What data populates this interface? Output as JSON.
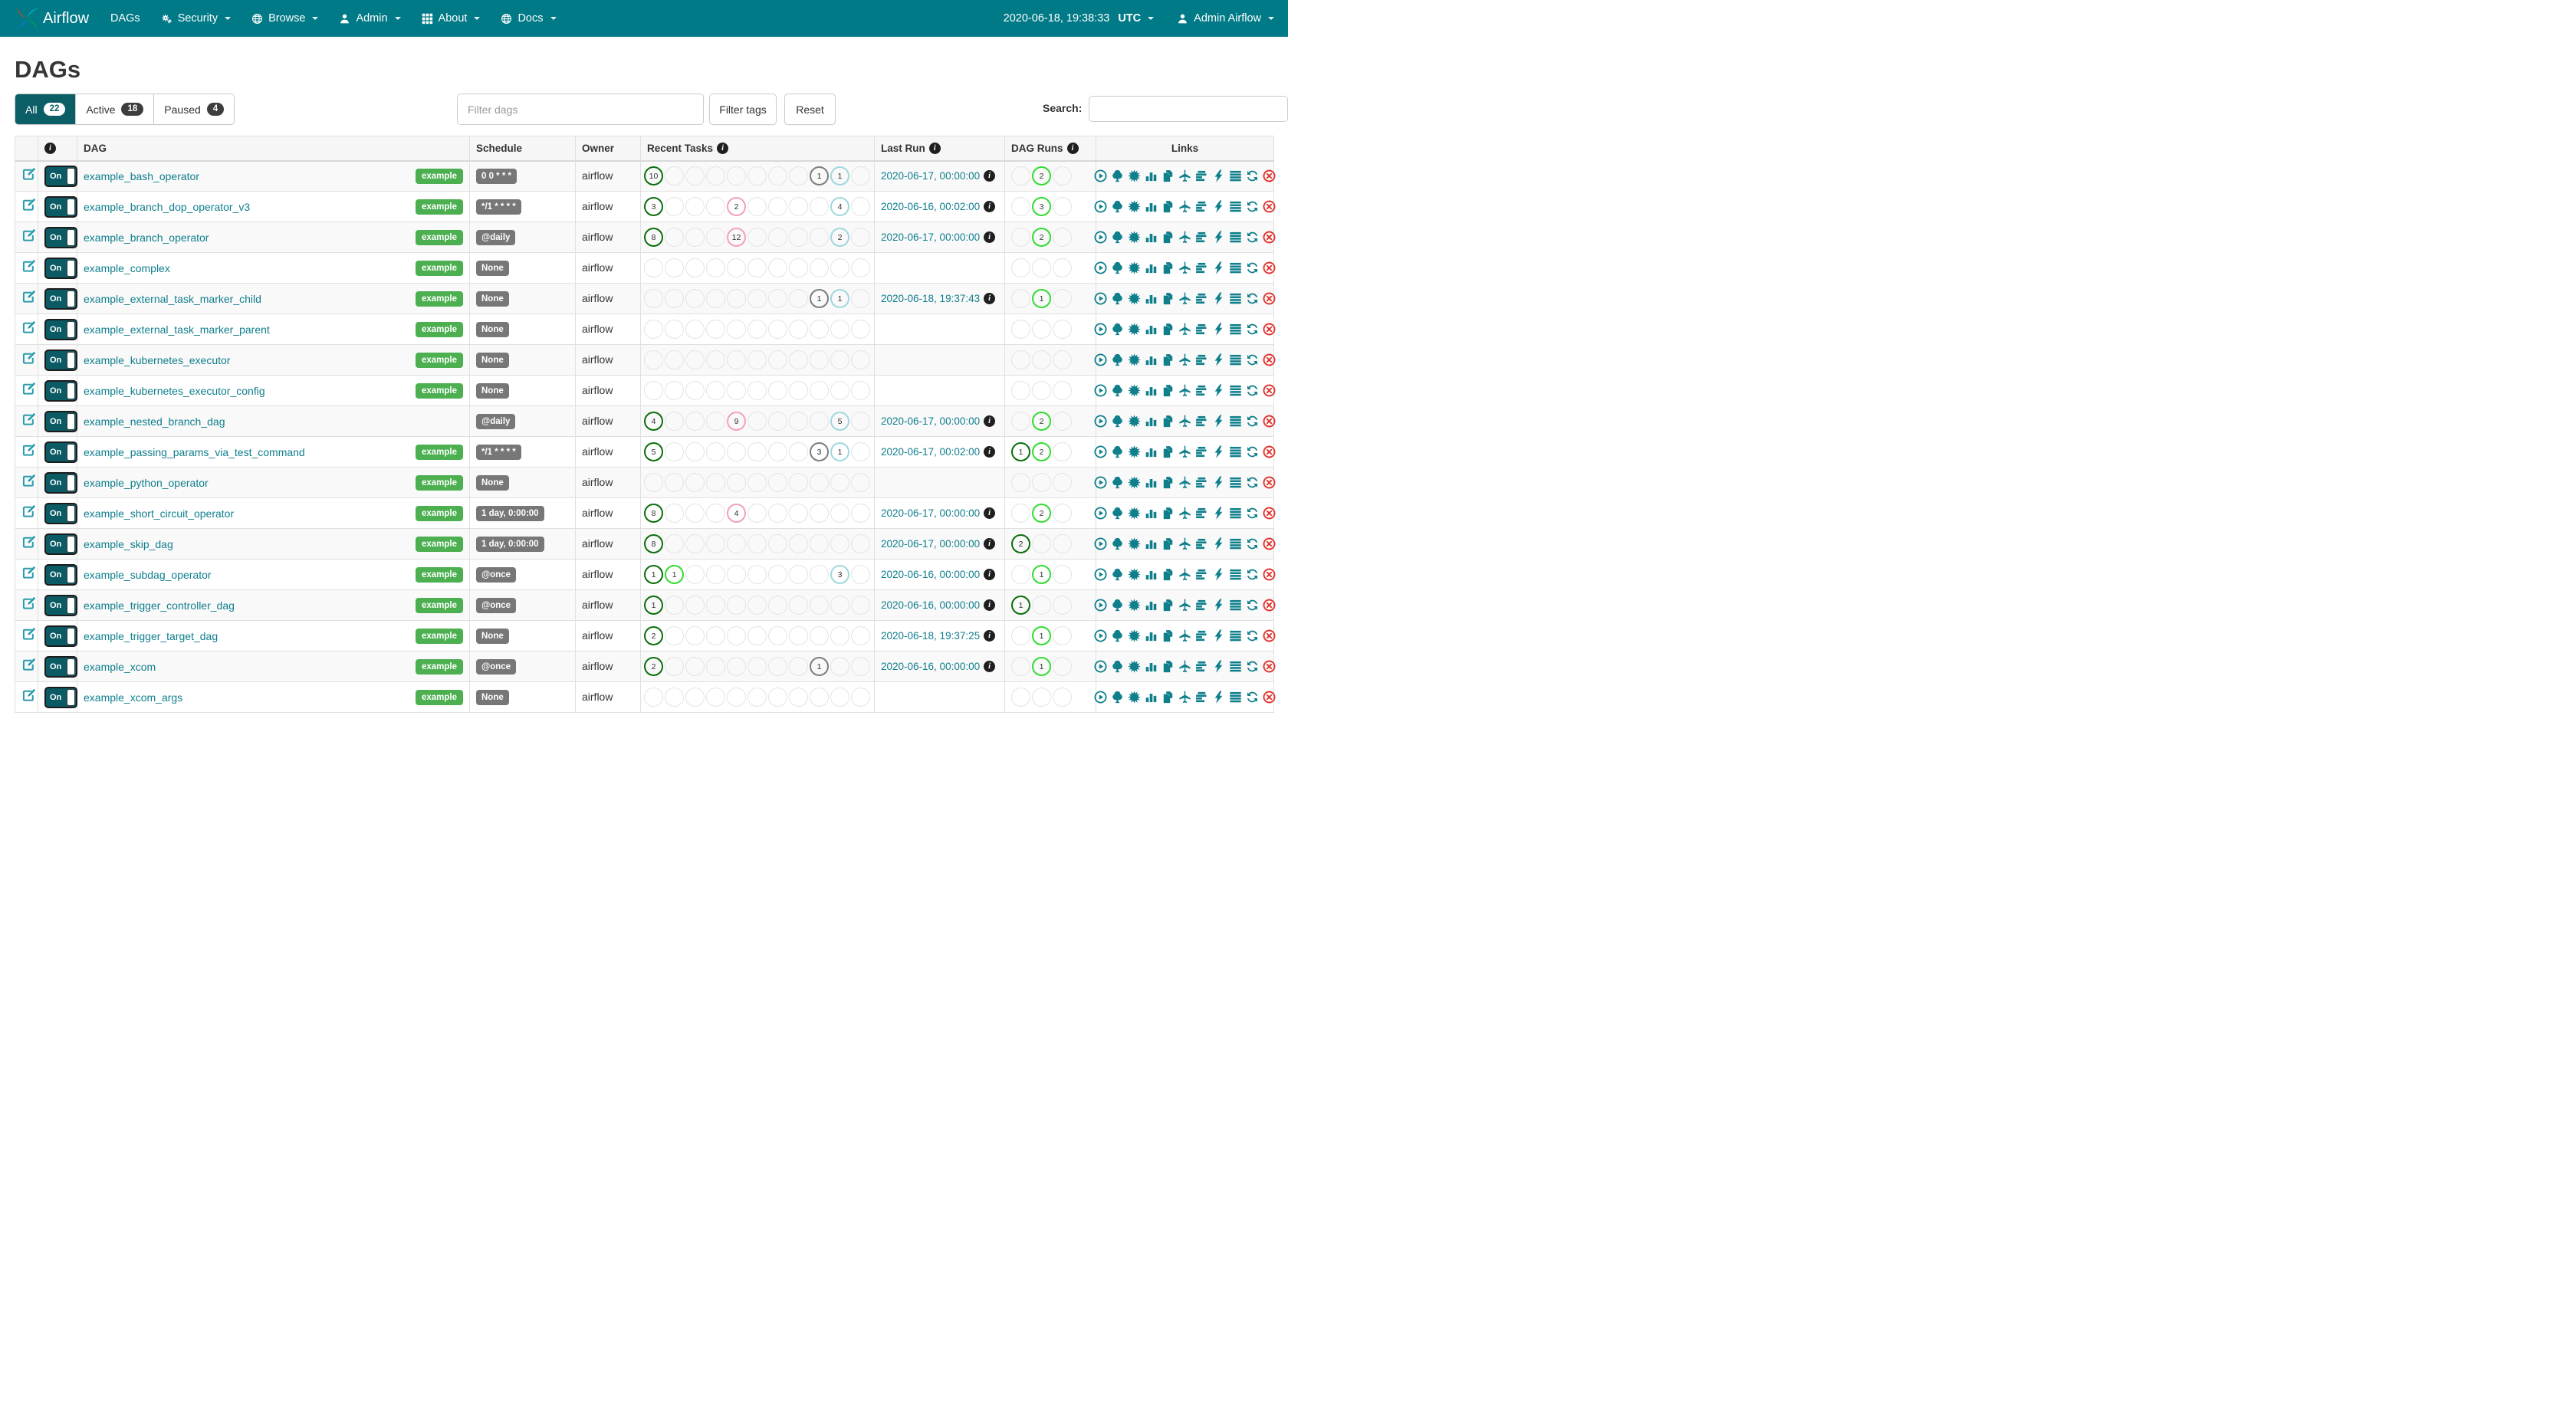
{
  "navbar": {
    "brand": "Airflow",
    "items": [
      {
        "label": "DAGs",
        "icon": null,
        "dropdown": false
      },
      {
        "label": "Security",
        "icon": "gears",
        "dropdown": true
      },
      {
        "label": "Browse",
        "icon": "globe",
        "dropdown": true
      },
      {
        "label": "Admin",
        "icon": "person",
        "dropdown": true
      },
      {
        "label": "About",
        "icon": "grid",
        "dropdown": true
      },
      {
        "label": "Docs",
        "icon": "globe",
        "dropdown": true
      }
    ],
    "clock": "2020-06-18, 19:38:33",
    "clock_tz": "UTC",
    "user": "Admin Airflow"
  },
  "page": {
    "title": "DAGs"
  },
  "tabs": [
    {
      "label": "All",
      "count": 22,
      "active": true
    },
    {
      "label": "Active",
      "count": 18,
      "active": false
    },
    {
      "label": "Paused",
      "count": 4,
      "active": false
    }
  ],
  "filters": {
    "filter_dags_placeholder": "Filter dags",
    "filter_tags_label": "Filter tags",
    "reset_label": "Reset",
    "search_label": "Search:"
  },
  "toggle_on_label": "On",
  "table": {
    "columns": [
      {
        "label": "",
        "info": false
      },
      {
        "label": "",
        "info": true
      },
      {
        "label": "DAG",
        "info": false
      },
      {
        "label": "Schedule",
        "info": false
      },
      {
        "label": "Owner",
        "info": false
      },
      {
        "label": "Recent Tasks",
        "info": true
      },
      {
        "label": "Last Run",
        "info": true
      },
      {
        "label": "DAG Runs",
        "info": true
      },
      {
        "label": "Links",
        "info": false,
        "center": true
      }
    ],
    "recent_task_slot_count": 11,
    "dag_run_slot_count": 3
  },
  "links": [
    "play-circle",
    "tree",
    "starburst",
    "bar-chart",
    "copy-files",
    "plane",
    "gantt-bars",
    "lightning-bolt",
    "lines",
    "refresh",
    "delete-x"
  ],
  "colors": {
    "navbar_teal": "#007A87",
    "active_tab_teal": "#0c5e66",
    "link_teal": "#0e7e8d",
    "icon_teal": "#0e7f8b",
    "delete_red": "#e0352f",
    "tag_green": "#4caf50",
    "badge_gray": "#777777",
    "states": {
      "success": "#0b6e0b",
      "running": "#31dd31",
      "skipped": "#f3a1b5",
      "queued": "#7d7d7d",
      "none": "#9fd8de"
    }
  },
  "rows": [
    {
      "name": "example_bash_operator",
      "tag": "example",
      "schedule": "0 0 * * *",
      "owner": "airflow",
      "recent_tasks": [
        {
          "slot": 1,
          "state": "success",
          "count": 10
        },
        {
          "slot": 9,
          "state": "queued",
          "count": 1
        },
        {
          "slot": 10,
          "state": "none",
          "count": 1
        }
      ],
      "last_run": "2020-06-17, 00:00:00",
      "dag_runs": [
        {
          "slot": 2,
          "state": "running",
          "count": 2
        }
      ]
    },
    {
      "name": "example_branch_dop_operator_v3",
      "tag": "example",
      "schedule": "*/1 * * * *",
      "owner": "airflow",
      "recent_tasks": [
        {
          "slot": 1,
          "state": "success",
          "count": 3
        },
        {
          "slot": 5,
          "state": "skipped",
          "count": 2
        },
        {
          "slot": 10,
          "state": "none",
          "count": 4
        }
      ],
      "last_run": "2020-06-16, 00:02:00",
      "dag_runs": [
        {
          "slot": 2,
          "state": "running",
          "count": 3
        }
      ]
    },
    {
      "name": "example_branch_operator",
      "tag": "example",
      "schedule": "@daily",
      "owner": "airflow",
      "recent_tasks": [
        {
          "slot": 1,
          "state": "success",
          "count": 8
        },
        {
          "slot": 5,
          "state": "skipped",
          "count": 12
        },
        {
          "slot": 10,
          "state": "none",
          "count": 2
        }
      ],
      "last_run": "2020-06-17, 00:00:00",
      "dag_runs": [
        {
          "slot": 2,
          "state": "running",
          "count": 2
        }
      ]
    },
    {
      "name": "example_complex",
      "tag": "example",
      "schedule": "None",
      "owner": "airflow",
      "recent_tasks": [],
      "last_run": "",
      "dag_runs": []
    },
    {
      "name": "example_external_task_marker_child",
      "tag": "example",
      "schedule": "None",
      "owner": "airflow",
      "recent_tasks": [
        {
          "slot": 9,
          "state": "queued",
          "count": 1
        },
        {
          "slot": 10,
          "state": "none",
          "count": 1
        }
      ],
      "last_run": "2020-06-18, 19:37:43",
      "dag_runs": [
        {
          "slot": 2,
          "state": "running",
          "count": 1
        }
      ]
    },
    {
      "name": "example_external_task_marker_parent",
      "tag": "example",
      "schedule": "None",
      "owner": "airflow",
      "recent_tasks": [],
      "last_run": "",
      "dag_runs": []
    },
    {
      "name": "example_kubernetes_executor",
      "tag": "example",
      "schedule": "None",
      "owner": "airflow",
      "recent_tasks": [],
      "last_run": "",
      "dag_runs": []
    },
    {
      "name": "example_kubernetes_executor_config",
      "tag": "example",
      "schedule": "None",
      "owner": "airflow",
      "recent_tasks": [],
      "last_run": "",
      "dag_runs": []
    },
    {
      "name": "example_nested_branch_dag",
      "tag": null,
      "schedule": "@daily",
      "owner": "airflow",
      "recent_tasks": [
        {
          "slot": 1,
          "state": "success",
          "count": 4
        },
        {
          "slot": 5,
          "state": "skipped",
          "count": 9
        },
        {
          "slot": 10,
          "state": "none",
          "count": 5
        }
      ],
      "last_run": "2020-06-17, 00:00:00",
      "dag_runs": [
        {
          "slot": 2,
          "state": "running",
          "count": 2
        }
      ]
    },
    {
      "name": "example_passing_params_via_test_command",
      "tag": "example",
      "schedule": "*/1 * * * *",
      "owner": "airflow",
      "recent_tasks": [
        {
          "slot": 1,
          "state": "success",
          "count": 5
        },
        {
          "slot": 9,
          "state": "queued",
          "count": 3
        },
        {
          "slot": 10,
          "state": "none",
          "count": 1
        }
      ],
      "last_run": "2020-06-17, 00:02:00",
      "dag_runs": [
        {
          "slot": 1,
          "state": "success",
          "count": 1
        },
        {
          "slot": 2,
          "state": "running",
          "count": 2
        }
      ]
    },
    {
      "name": "example_python_operator",
      "tag": "example",
      "schedule": "None",
      "owner": "airflow",
      "recent_tasks": [],
      "last_run": "",
      "dag_runs": []
    },
    {
      "name": "example_short_circuit_operator",
      "tag": "example",
      "schedule": "1 day, 0:00:00",
      "owner": "airflow",
      "recent_tasks": [
        {
          "slot": 1,
          "state": "success",
          "count": 8
        },
        {
          "slot": 5,
          "state": "skipped",
          "count": 4
        }
      ],
      "last_run": "2020-06-17, 00:00:00",
      "dag_runs": [
        {
          "slot": 2,
          "state": "running",
          "count": 2
        }
      ]
    },
    {
      "name": "example_skip_dag",
      "tag": "example",
      "schedule": "1 day, 0:00:00",
      "owner": "airflow",
      "recent_tasks": [
        {
          "slot": 1,
          "state": "success",
          "count": 8
        }
      ],
      "last_run": "2020-06-17, 00:00:00",
      "dag_runs": [
        {
          "slot": 1,
          "state": "success",
          "count": 2
        }
      ]
    },
    {
      "name": "example_subdag_operator",
      "tag": "example",
      "schedule": "@once",
      "owner": "airflow",
      "recent_tasks": [
        {
          "slot": 1,
          "state": "success",
          "count": 1
        },
        {
          "slot": 2,
          "state": "running",
          "count": 1
        },
        {
          "slot": 10,
          "state": "none",
          "count": 3
        }
      ],
      "last_run": "2020-06-16, 00:00:00",
      "dag_runs": [
        {
          "slot": 2,
          "state": "running",
          "count": 1
        }
      ]
    },
    {
      "name": "example_trigger_controller_dag",
      "tag": "example",
      "schedule": "@once",
      "owner": "airflow",
      "recent_tasks": [
        {
          "slot": 1,
          "state": "success",
          "count": 1
        }
      ],
      "last_run": "2020-06-16, 00:00:00",
      "dag_runs": [
        {
          "slot": 1,
          "state": "success",
          "count": 1
        }
      ]
    },
    {
      "name": "example_trigger_target_dag",
      "tag": "example",
      "schedule": "None",
      "owner": "airflow",
      "recent_tasks": [
        {
          "slot": 1,
          "state": "success",
          "count": 2
        }
      ],
      "last_run": "2020-06-18, 19:37:25",
      "dag_runs": [
        {
          "slot": 2,
          "state": "running",
          "count": 1
        }
      ]
    },
    {
      "name": "example_xcom",
      "tag": "example",
      "schedule": "@once",
      "owner": "airflow",
      "recent_tasks": [
        {
          "slot": 1,
          "state": "success",
          "count": 2
        },
        {
          "slot": 9,
          "state": "queued",
          "count": 1
        }
      ],
      "last_run": "2020-06-16, 00:00:00",
      "dag_runs": [
        {
          "slot": 2,
          "state": "running",
          "count": 1
        }
      ]
    },
    {
      "name": "example_xcom_args",
      "tag": "example",
      "schedule": "None",
      "owner": "airflow",
      "recent_tasks": [],
      "last_run": "",
      "dag_runs": []
    }
  ]
}
